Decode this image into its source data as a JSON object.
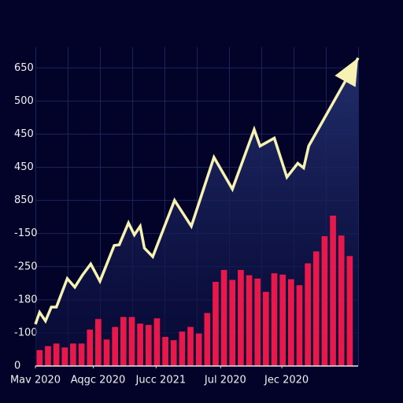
{
  "chart_data": {
    "type": "bar",
    "xlim": [
      0,
      38.5
    ],
    "ylim": [
      0,
      480
    ],
    "xticks": [
      {
        "value": 0,
        "label": "Mav 2020"
      },
      {
        "value": 6.9,
        "label": "Aqgc 2020"
      },
      {
        "value": 14.4,
        "label": "Jucc 2021"
      },
      {
        "value": 22.1,
        "label": "Jul 2020"
      },
      {
        "value": 29.4,
        "label": "Jec 2020"
      }
    ],
    "yticks": [
      0,
      {
        "value": 50,
        "label": "-100"
      },
      {
        "value": 100,
        "label": "-180"
      },
      {
        "value": 150,
        "label": "-250"
      },
      {
        "value": 200,
        "label": "-150"
      },
      {
        "value": 250,
        "label": "850"
      },
      {
        "value": 300,
        "label": "450"
      },
      {
        "value": 350,
        "label": "450"
      },
      {
        "value": 400,
        "label": "500"
      },
      {
        "value": 450,
        "label": "650"
      }
    ],
    "grid": true,
    "series": [
      {
        "type": "bar",
        "color": "#e8184a",
        "x": [
          0.5,
          1.5,
          2.5,
          3.5,
          4.5,
          5.5,
          6.5,
          7.5,
          8.5,
          9.5,
          10.5,
          11.5,
          12.5,
          13.5,
          14.5,
          15.5,
          16.5,
          17.5,
          18.5,
          19.5,
          20.5,
          21.5,
          22.5,
          23.5,
          24.5,
          25.5,
          26.5,
          27.5,
          28.5,
          29.5,
          30.5,
          31.5,
          32.5,
          33.5,
          34.5,
          35.5,
          36.5,
          37.5
        ],
        "values": [
          24,
          30,
          34,
          28,
          34,
          34,
          55,
          71,
          40,
          59,
          74,
          74,
          64,
          62,
          72,
          44,
          39,
          52,
          59,
          49,
          80,
          127,
          145,
          130,
          145,
          137,
          132,
          112,
          140,
          138,
          131,
          122,
          155,
          173,
          196,
          227,
          197,
          166
        ]
      },
      {
        "type": "line",
        "color": "#f7f2b4",
        "x": [
          0,
          0.5,
          1.2,
          1.9,
          2.5,
          3.8,
          4.7,
          5.6,
          6.6,
          7.7,
          9.4,
          10,
          11.1,
          11.8,
          12.5,
          13,
          14,
          16.6,
          18.6,
          21.3,
          23.5,
          26.1,
          26.8,
          28.5,
          30,
          31.3,
          32,
          32.6,
          37.1,
          38.5
        ],
        "values": [
          63,
          81,
          68,
          89,
          89,
          132,
          119,
          137,
          154,
          128,
          182,
          183,
          216,
          198,
          211,
          178,
          165,
          250,
          211,
          315,
          267,
          357,
          332,
          344,
          285,
          306,
          299,
          332,
          433,
          465
        ]
      }
    ]
  }
}
